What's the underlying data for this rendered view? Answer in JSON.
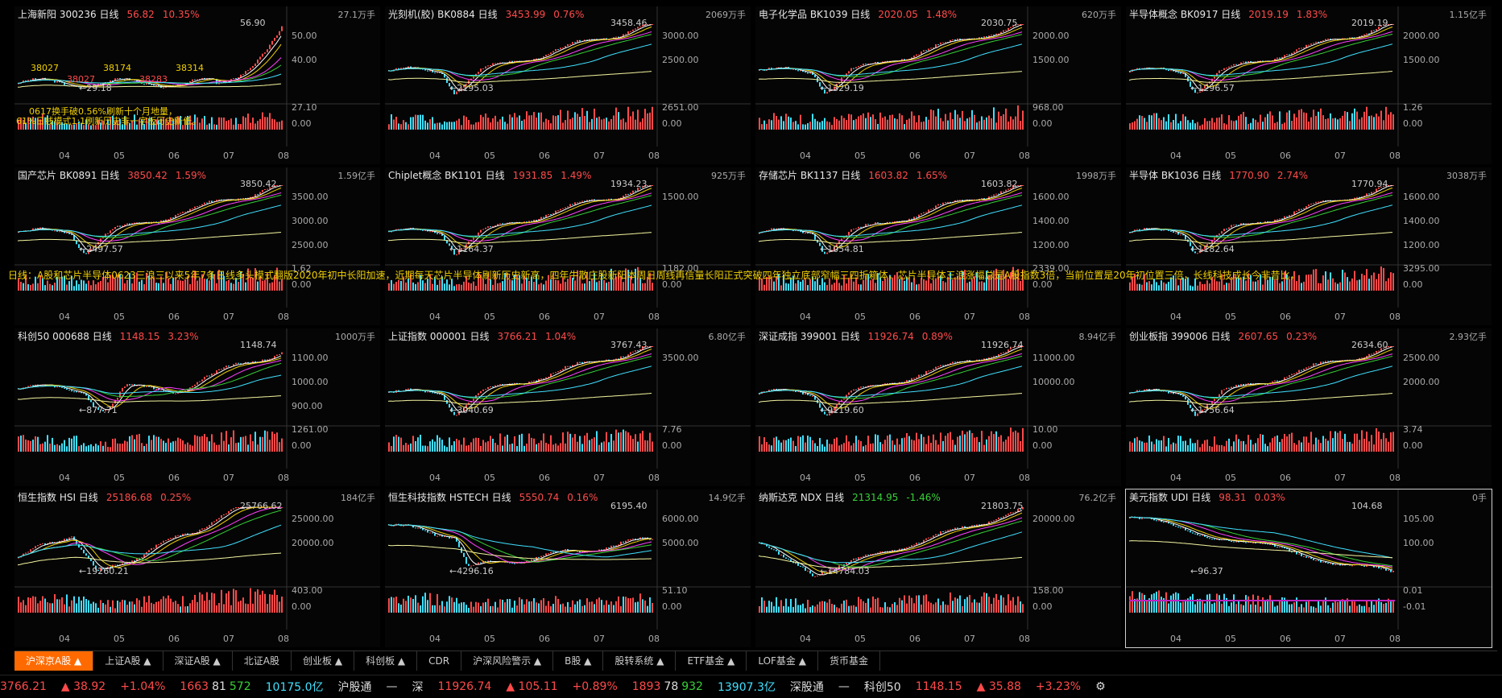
{
  "colors": {
    "up": "#ff4a4a",
    "down": "#37d137",
    "accent": "#ff6a00",
    "vol_up": "#ff4a4a",
    "vol_down": "#40e0ff"
  },
  "x_months": [
    "04",
    "05",
    "06",
    "07",
    "08"
  ],
  "scroll_note": "日线：A股和芯片半导体0623三浪三以来5年7条日线多头模式翻版2020年初中长阳加速，近期每天芯片半导体刷新历史新高，四年牛散庄股新阳本周日周线再信量长阳正式突破四年独立底部窄幅三四折箱体，芯片半导体三浪涨幅总是A股指数3倍，当前位置是20年初位置三倍，长线科技成长今非昔比，",
  "panels": [
    {
      "name": "上海新阳 300236 日线",
      "price": "56.82",
      "pct": "10.35%",
      "vol": "27.1万手",
      "hi": "56.90",
      "lo": "29.18",
      "yticks": [
        "50.00",
        "40.00"
      ],
      "vticks": [
        "27.10",
        "0.00"
      ],
      "trend": "rise_sharp",
      "annotations": [
        "0617换手破0.56%刷新十个月地量，",
        "61%日线模式1:1刷新历史非一字板历史新低。"
      ],
      "marks": [
        "38027",
        "38027",
        "38174",
        "38283",
        "38314"
      ]
    },
    {
      "name": "光刻机(胶) BK0884 日线",
      "price": "3453.99",
      "pct": "0.76%",
      "vol": "2069万手",
      "hi": "3458.46",
      "lo": "2195.03",
      "yticks": [
        "3000.00",
        "2500.00"
      ],
      "vticks": [
        "2651.00",
        "0.00"
      ],
      "trend": "rise"
    },
    {
      "name": "电子化学品 BK1039 日线",
      "price": "2020.05",
      "pct": "1.48%",
      "vol": "620万手",
      "hi": "2030.75",
      "lo": "1329.19",
      "yticks": [
        "2000.00",
        "1500.00"
      ],
      "vticks": [
        "968.00",
        "0.00"
      ],
      "trend": "rise"
    },
    {
      "name": "半导体概念 BK0917 日线",
      "price": "2019.19",
      "pct": "1.83%",
      "vol": "1.15亿手",
      "hi": "2019.19",
      "lo": "1296.57",
      "yticks": [
        "2000.00",
        "1500.00"
      ],
      "vticks": [
        "1.26",
        "0.00"
      ],
      "trend": "rise"
    },
    {
      "name": "国产芯片 BK0891 日线",
      "price": "3850.42",
      "pct": "1.59%",
      "vol": "1.59亿手",
      "hi": "3850.42",
      "lo": "2497.57",
      "yticks": [
        "3500.00",
        "3000.00",
        "2500.00"
      ],
      "vticks": [
        "1.62",
        "0.00"
      ],
      "trend": "rise"
    },
    {
      "name": "Chiplet概念 BK1101 日线",
      "price": "1931.85",
      "pct": "1.49%",
      "vol": "925万手",
      "hi": "1934.23",
      "lo": "1164.37",
      "yticks": [
        "1500.00"
      ],
      "vticks": [
        "1182.00",
        "0.00"
      ],
      "trend": "rise"
    },
    {
      "name": "存储芯片 BK1137 日线",
      "price": "1603.82",
      "pct": "1.65%",
      "vol": "1998万手",
      "hi": "1603.82",
      "lo": "1054.81",
      "yticks": [
        "1600.00",
        "1400.00",
        "1200.00"
      ],
      "vticks": [
        "2339.00",
        "0.00"
      ],
      "trend": "rise"
    },
    {
      "name": "半导体 BK1036 日线",
      "price": "1770.90",
      "pct": "2.74%",
      "vol": "3038万手",
      "hi": "1770.94",
      "lo": "1182.64",
      "yticks": [
        "1600.00",
        "1400.00",
        "1200.00"
      ],
      "vticks": [
        "3295.00",
        "0.00"
      ],
      "trend": "rise"
    },
    {
      "name": "科创50 000688 日线",
      "price": "1148.15",
      "pct": "3.23%",
      "vol": "1000万手",
      "hi": "1148.74",
      "lo": "877.71",
      "yticks": [
        "1100.00",
        "1000.00",
        "900.00"
      ],
      "vticks": [
        "1261.00",
        "0.00"
      ],
      "trend": "rise_late"
    },
    {
      "name": "上证指数 000001 日线",
      "price": "3766.21",
      "pct": "1.04%",
      "vol": "6.80亿手",
      "hi": "3767.43",
      "lo": "3040.69",
      "yticks": [
        "3500.00"
      ],
      "vticks": [
        "7.76",
        "0.00"
      ],
      "trend": "rise"
    },
    {
      "name": "深证成指 399001 日线",
      "price": "11926.74",
      "pct": "0.89%",
      "vol": "8.94亿手",
      "hi": "11926.74",
      "lo": "9119.60",
      "yticks": [
        "11000.00",
        "10000.00"
      ],
      "vticks": [
        "10.00",
        "0.00"
      ],
      "trend": "rise"
    },
    {
      "name": "创业板指 399006 日线",
      "price": "2607.65",
      "pct": "0.23%",
      "vol": "2.93亿手",
      "hi": "2634.60",
      "lo": "1756.64",
      "yticks": [
        "2500.00",
        "2000.00"
      ],
      "vticks": [
        "3.74",
        "0.00"
      ],
      "trend": "rise"
    },
    {
      "name": "恒生指数 HSI 日线",
      "price": "25186.68",
      "pct": "0.25%",
      "vol": "184亿手",
      "hi": "25766.62",
      "lo": "19260.21",
      "yticks": [
        "25000.00",
        "20000.00"
      ],
      "vticks": [
        "403.00",
        "0.00"
      ],
      "trend": "hsi"
    },
    {
      "name": "恒生科技指数 HSTECH 日线",
      "price": "5550.74",
      "pct": "0.16%",
      "vol": "14.9亿手",
      "hi": "6195.40",
      "lo": "4296.16",
      "yticks": [
        "6000.00",
        "5000.00"
      ],
      "vticks": [
        "51.10",
        "0.00"
      ],
      "trend": "hstech"
    },
    {
      "name": "纳斯达克 NDX 日线",
      "price": "21314.95",
      "pct": "-1.46%",
      "vol": "76.2亿手",
      "hi": "21803.75",
      "lo": "14784.03",
      "yticks": [
        "20000.00"
      ],
      "vticks": [
        "158.00",
        "0.00"
      ],
      "trend": "ndx",
      "down": true
    },
    {
      "name": "美元指数 UDI 日线",
      "price": "98.31",
      "pct": "0.03%",
      "vol": "0手",
      "hi": "104.68",
      "lo": "96.37",
      "yticks": [
        "105.00",
        "100.00"
      ],
      "vticks": [
        "0.01",
        "-0.01"
      ],
      "trend": "fall",
      "selected": true
    }
  ],
  "tabs": [
    "沪深京A股 ▲",
    "上证A股 ▲",
    "深证A股 ▲",
    "北证A股",
    "创业板 ▲",
    "科创板 ▲",
    "CDR",
    "沪深风险警示 ▲",
    "B股 ▲",
    "股转系统 ▲",
    "ETF基金 ▲",
    "LOF基金 ▲",
    "货币基金"
  ],
  "status": {
    "sh_val": "3766.21",
    "sh_chg": "▲ 38.92",
    "sh_pct": "+1.04%",
    "sh_up": "1663",
    "sh_flat": "81",
    "sh_down": "572",
    "sh_amt": "10175.0亿",
    "hgt": "沪股通",
    "hgt_v": "—",
    "sz_label": "深",
    "sz_val": "11926.74",
    "sz_chg": "▲ 105.11",
    "sz_pct": "+0.89%",
    "sz_up": "1893",
    "sz_flat": "78",
    "sz_down": "932",
    "sz_amt": "13907.3亿",
    "sgt": "深股通",
    "sgt_v": "—",
    "kc_label": "科创50",
    "kc_val": "1148.15",
    "kc_chg": "▲ 35.88",
    "kc_pct": "+3.23%"
  }
}
